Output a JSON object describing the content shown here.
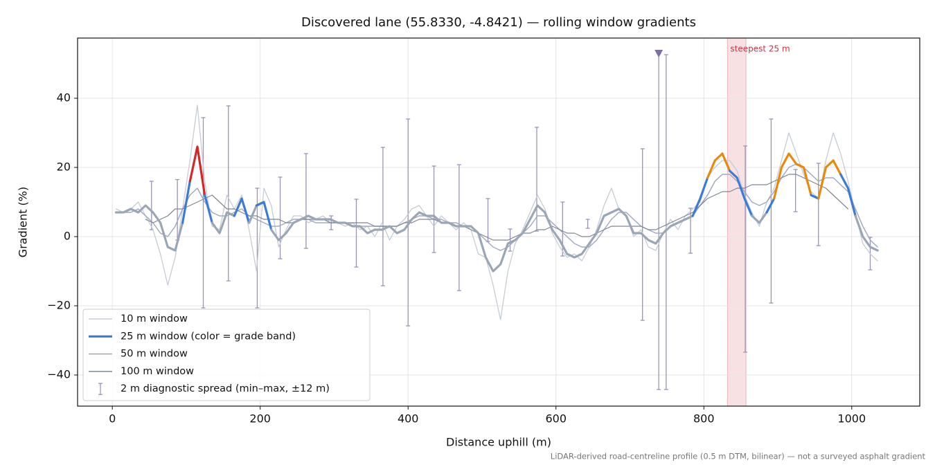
{
  "chart_data": {
    "type": "line",
    "title": "Discovered lane (55.8330, -4.8421) — rolling window gradients",
    "xlabel": "Distance uphill (m)",
    "ylabel": "Gradient (%)",
    "note": "LiDAR-derived road-centreline profile (0.5 m DTM, bilinear) — not a surveyed asphalt gradient",
    "xlim": [
      -47,
      1092
    ],
    "ylim": [
      -49,
      57.4
    ],
    "xticks": [
      0,
      200,
      400,
      600,
      800,
      1000
    ],
    "yticks": [
      {
        "value": -40,
        "label": "−40"
      },
      {
        "value": -20,
        "label": "−20"
      },
      0,
      20,
      40
    ],
    "grid": true,
    "legend": "lower left",
    "x": [
      5,
      15,
      25,
      35,
      45,
      55,
      65,
      75,
      85,
      95,
      105,
      115,
      125,
      135,
      145,
      155,
      165,
      175,
      185,
      195,
      205,
      215,
      225,
      235,
      245,
      255,
      265,
      275,
      285,
      295,
      305,
      315,
      325,
      335,
      345,
      355,
      365,
      375,
      385,
      395,
      405,
      415,
      425,
      435,
      445,
      455,
      465,
      475,
      485,
      495,
      505,
      515,
      525,
      535,
      545,
      555,
      565,
      575,
      585,
      595,
      605,
      615,
      625,
      635,
      645,
      655,
      665,
      675,
      685,
      695,
      705,
      715,
      725,
      735,
      745,
      755,
      765,
      775,
      785,
      795,
      805,
      815,
      825,
      835,
      845,
      855,
      865,
      875,
      885,
      895,
      905,
      915,
      925,
      935,
      945,
      955,
      965,
      975,
      985,
      995,
      1005,
      1015,
      1025,
      1035
    ],
    "series": [
      {
        "name": "10 m window",
        "color": "#c5ccd4",
        "width": 1.3,
        "values": [
          8,
          7,
          8,
          10,
          6,
          2,
          -5,
          -14,
          -6,
          8,
          22,
          38,
          16,
          3,
          2,
          12,
          8,
          12,
          2,
          -10,
          14,
          9,
          -3,
          2,
          6,
          6,
          4,
          5,
          6,
          4,
          4,
          3,
          4,
          2,
          3,
          0,
          4,
          -1,
          3,
          5,
          8,
          9,
          6,
          3,
          6,
          4,
          2,
          4,
          2,
          -5,
          -6,
          -14,
          -24,
          -10,
          -2,
          2,
          7,
          12,
          8,
          1,
          -3,
          -6,
          -5,
          -7,
          -3,
          2,
          9,
          14,
          8,
          6,
          0,
          2,
          -3,
          -4,
          1,
          5,
          2,
          6,
          8,
          10,
          17,
          20,
          22,
          22,
          19,
          12,
          7,
          3,
          10,
          14,
          22,
          30,
          24,
          18,
          13,
          11,
          22,
          30,
          24,
          16,
          7,
          -2,
          -5,
          -7
        ]
      },
      {
        "name": "25 m window (color = grade band)",
        "color": "#9aa6b6",
        "legend_color": "#3a7bd5",
        "width": 3.2,
        "values": [
          7,
          7,
          8,
          7,
          9,
          7,
          4,
          -3,
          -4,
          4,
          16,
          26,
          12,
          4,
          1,
          7,
          6,
          11,
          4,
          9,
          10,
          2,
          -1,
          1,
          4,
          5,
          6,
          5,
          5,
          5,
          4,
          4,
          3,
          3,
          1,
          2,
          2,
          3,
          1,
          2,
          5,
          7,
          6,
          6,
          4,
          4,
          3,
          3,
          3,
          1,
          -6,
          -10,
          -8,
          -2,
          -1,
          1,
          5,
          9,
          7,
          2,
          -1,
          -5,
          -6,
          -5,
          -2,
          1,
          6,
          7,
          8,
          6,
          1,
          1,
          -1,
          -2,
          1,
          3,
          4,
          5,
          6,
          11,
          17,
          22,
          24,
          19,
          17,
          11,
          6,
          4,
          7,
          11,
          20,
          24,
          21,
          20,
          12,
          11,
          20,
          22,
          18,
          14,
          6,
          0,
          -3,
          -4
        ]
      },
      {
        "name": "50 m window",
        "color": "#a0a9bd",
        "width": 1.5,
        "values": [
          7,
          7,
          7,
          8,
          6,
          4,
          1,
          0,
          3,
          8,
          12,
          14,
          10,
          7,
          6,
          6,
          7,
          8,
          6,
          5,
          4,
          3,
          3,
          4,
          5,
          5,
          5,
          4,
          4,
          4,
          4,
          4,
          3,
          3,
          3,
          3,
          3,
          3,
          3,
          4,
          5,
          6,
          6,
          5,
          5,
          4,
          4,
          3,
          3,
          1,
          -1,
          -3,
          -4,
          -3,
          -1,
          1,
          3,
          6,
          6,
          4,
          2,
          0,
          -2,
          -3,
          -3,
          -1,
          2,
          5,
          7,
          7,
          5,
          3,
          2,
          1,
          1,
          3,
          4,
          5,
          6,
          9,
          12,
          16,
          18,
          18,
          16,
          13,
          10,
          9,
          10,
          13,
          17,
          20,
          21,
          20,
          18,
          16,
          17,
          17,
          15,
          13,
          8,
          3,
          -1,
          -3
        ]
      },
      {
        "name": "100 m window",
        "color": "#7d8594",
        "width": 1.2,
        "values": [
          null,
          null,
          null,
          null,
          5,
          4,
          5,
          6,
          8,
          8,
          9,
          10,
          11,
          12,
          10,
          8,
          8,
          7,
          6,
          6,
          5,
          5,
          5,
          4,
          4,
          5,
          5,
          5,
          5,
          4,
          4,
          4,
          4,
          4,
          4,
          3,
          3,
          3,
          3,
          4,
          4,
          5,
          5,
          5,
          4,
          4,
          3,
          3,
          2,
          1,
          0,
          -1,
          -1,
          -1,
          0,
          1,
          1,
          2,
          2,
          3,
          2,
          1,
          1,
          0,
          0,
          1,
          2,
          3,
          3,
          3,
          3,
          3,
          2,
          2,
          3,
          4,
          5,
          6,
          7,
          9,
          11,
          12,
          13,
          13,
          14,
          14,
          15,
          15,
          15,
          16,
          17,
          18,
          18,
          17,
          16,
          15,
          14,
          12,
          10,
          8,
          null,
          null,
          null,
          null
        ]
      }
    ],
    "grade_bands": [
      {
        "min": 10,
        "color": "#3a7bd5"
      },
      {
        "min": 20,
        "color": "#e8890c"
      },
      {
        "min": 25,
        "color": "#d62728"
      }
    ],
    "errorbars": {
      "name": "2 m diagnostic spread (min–max, ±12 m)",
      "color": "#9a93b8",
      "x": [
        53,
        88,
        123,
        157,
        196,
        227,
        262,
        296,
        330,
        366,
        400,
        435,
        469,
        508,
        538,
        574,
        609,
        643,
        717,
        739,
        749,
        782,
        856,
        891,
        924,
        955,
        1025
      ],
      "low": [
        2,
        -1,
        -20.6,
        -12.8,
        -20.6,
        -6.4,
        -3.4,
        2,
        -8.8,
        -14.2,
        -25.8,
        -4.6,
        -15.6,
        -1.4,
        -4.2,
        1.6,
        -5.6,
        2.4,
        -24.2,
        -44.2,
        -44.2,
        -4.8,
        -33.4,
        -19.2,
        7.2,
        -2.6,
        -9.6
      ],
      "high": [
        16,
        16.5,
        34.4,
        37.8,
        14,
        17.2,
        24,
        6,
        10.8,
        25.8,
        34,
        20.4,
        20.8,
        11,
        2.2,
        31.6,
        10,
        5,
        25.4,
        52.8,
        52.6,
        8.2,
        26.2,
        34,
        19.4,
        21.2,
        -0.2
      ]
    },
    "marker": {
      "x": 739,
      "y": 52.8,
      "color": "#7b6fa6"
    },
    "highlight": {
      "x0": 832,
      "x1": 857,
      "label": "steepest 25 m",
      "color": "#cc3344"
    }
  }
}
